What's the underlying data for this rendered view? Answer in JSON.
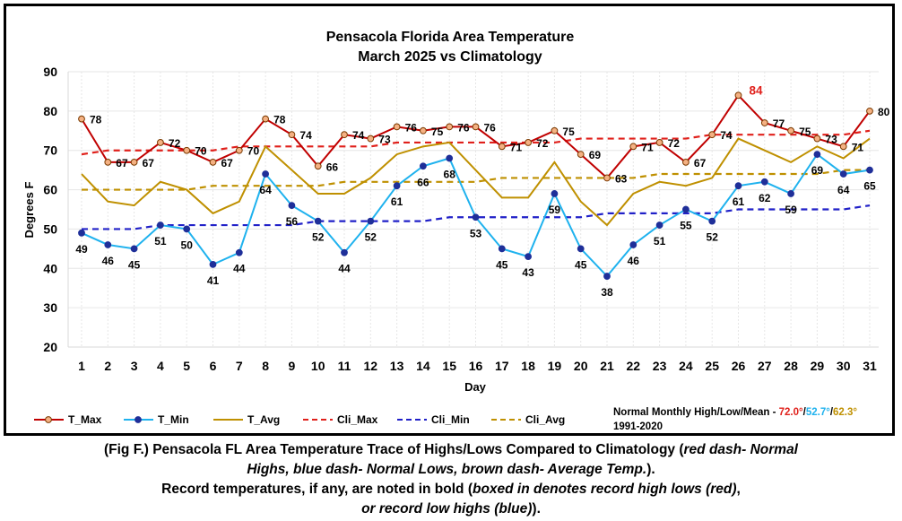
{
  "chart_data": {
    "type": "line",
    "title": "Pensacola Florida Area Temperature",
    "subtitle": "March 2025 vs Climatology",
    "xlabel": "Day",
    "ylabel": "Degrees F",
    "ylim": [
      20,
      90
    ],
    "yticks": [
      20,
      30,
      40,
      50,
      60,
      70,
      80,
      90
    ],
    "x": [
      1,
      2,
      3,
      4,
      5,
      6,
      7,
      8,
      9,
      10,
      11,
      12,
      13,
      14,
      15,
      16,
      17,
      18,
      19,
      20,
      21,
      22,
      23,
      24,
      25,
      26,
      27,
      28,
      29,
      30,
      31
    ],
    "grid": true,
    "legend_position": "bottom",
    "series": [
      {
        "name": "T_Max",
        "color": "#c00000",
        "style": "solid",
        "marker": "circle",
        "marker_fill": "#f4b183",
        "values": [
          78,
          67,
          67,
          72,
          70,
          67,
          70,
          78,
          74,
          66,
          74,
          73,
          76,
          75,
          76,
          76,
          71,
          72,
          75,
          69,
          63,
          71,
          72,
          67,
          74,
          84,
          77,
          75,
          73,
          71,
          80
        ]
      },
      {
        "name": "T_Min",
        "color": "#1fb2ee",
        "style": "solid",
        "marker": "circle",
        "marker_fill": "#1f2f99",
        "values": [
          49,
          46,
          45,
          51,
          50,
          41,
          44,
          64,
          56,
          52,
          44,
          52,
          61,
          66,
          68,
          53,
          45,
          43,
          59,
          45,
          38,
          46,
          51,
          55,
          52,
          61,
          62,
          59,
          69,
          64,
          65
        ]
      },
      {
        "name": "T_Avg",
        "color": "#bf9000",
        "style": "solid",
        "marker": "none",
        "values": [
          64,
          57,
          56,
          62,
          60,
          54,
          57,
          71,
          65,
          59,
          59,
          63,
          69,
          71,
          72,
          65,
          58,
          58,
          67,
          57,
          51,
          59,
          62,
          61,
          63,
          73,
          70,
          67,
          71,
          68,
          73
        ]
      },
      {
        "name": "Cli_Max",
        "color": "#e0201b",
        "style": "dashed",
        "marker": "none",
        "values": [
          69,
          70,
          70,
          70,
          70,
          70,
          71,
          71,
          71,
          71,
          71,
          71,
          72,
          72,
          72,
          72,
          72,
          72,
          72,
          73,
          73,
          73,
          73,
          73,
          74,
          74,
          74,
          74,
          74,
          74,
          75
        ]
      },
      {
        "name": "Cli_Min",
        "color": "#2020c8",
        "style": "dashed",
        "marker": "none",
        "values": [
          50,
          50,
          50,
          51,
          51,
          51,
          51,
          51,
          51,
          52,
          52,
          52,
          52,
          52,
          53,
          53,
          53,
          53,
          53,
          53,
          54,
          54,
          54,
          54,
          54,
          55,
          55,
          55,
          55,
          55,
          56
        ]
      },
      {
        "name": "Cli_Avg",
        "color": "#bf9000",
        "style": "dashed",
        "marker": "none",
        "values": [
          60,
          60,
          60,
          60,
          60,
          61,
          61,
          61,
          61,
          61,
          62,
          62,
          62,
          62,
          62,
          62,
          63,
          63,
          63,
          63,
          63,
          63,
          64,
          64,
          64,
          64,
          64,
          64,
          64,
          65,
          65
        ]
      }
    ],
    "tmax_labels": [
      "78",
      "67",
      "67",
      "72",
      "70",
      "67",
      "70",
      "78",
      "74",
      "66",
      "74",
      "73",
      "76",
      "75",
      "76",
      "76",
      "71",
      "72",
      "75",
      "69",
      "63",
      "71",
      "72",
      "67",
      "74",
      "84",
      "77",
      "75",
      "73",
      "71",
      "80"
    ],
    "tmin_labels": [
      "49",
      "46",
      "45",
      "51",
      "50",
      "41",
      "44",
      "64",
      "56",
      "52",
      "44",
      "52",
      "61",
      "66",
      "68",
      "53",
      "45",
      "43",
      "59",
      "45",
      "38",
      "46",
      "51",
      "55",
      "52",
      "61",
      "62",
      "59",
      "69",
      "64",
      "65"
    ],
    "record_highlight": {
      "day": 26,
      "value": "84",
      "color": "#e0201b"
    },
    "normals": {
      "prefix": "Normal Monthly High/Low/Mean - ",
      "high": "72.0°",
      "low": "52.7°",
      "mean": "62.3°",
      "sep1": "/",
      "sep2": "/",
      "high_color": "#e0201b",
      "low_color": "#1fb2ee",
      "mean_color": "#bf9000",
      "period": "1991-2020"
    }
  },
  "caption": {
    "line1_bold": "(Fig F.) Pensacola FL Area Temperature Trace of Highs/Lows Compared to Climatology (",
    "line1_italic": "red dash- Normal",
    "line2_italic": "Highs, blue dash- Normal Lows, brown dash- Average Temp.",
    "line2_bold": ").",
    "line3_bold": "Record temperatures, if any, are noted in bold (",
    "line3_italic": "boxed in denotes record high lows (red)",
    "line3_end": ",",
    "line4_italic": "or record low highs (blue)",
    "line4_end": ")."
  }
}
